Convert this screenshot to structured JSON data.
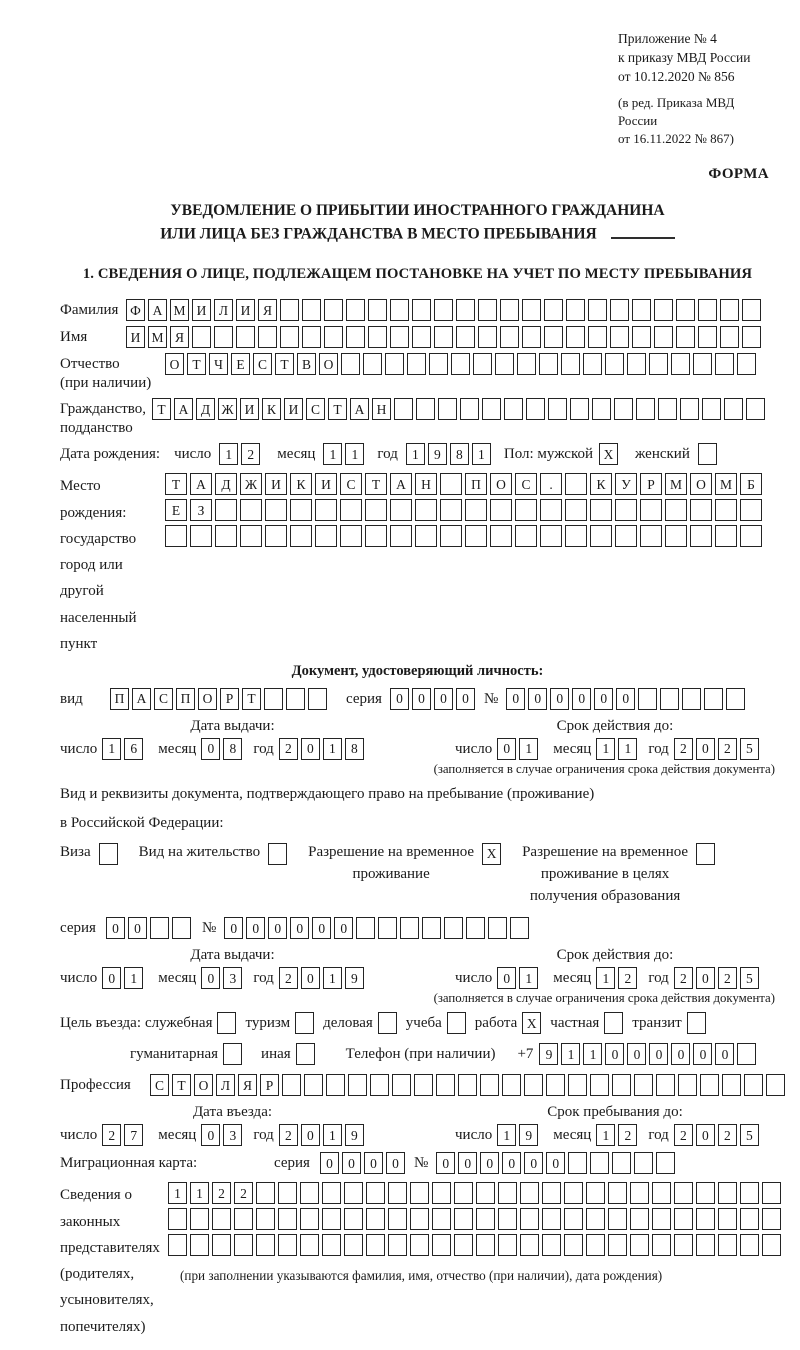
{
  "header": {
    "appendix": [
      "Приложение № 4",
      "к приказу МВД России",
      "от 10.12.2020 № 856"
    ],
    "appendix_note": [
      "(в ред. Приказа МВД России",
      "от 16.11.2022 № 867)"
    ],
    "form_word": "ФОРМА",
    "title1": "УВЕДОМЛЕНИЕ О ПРИБЫТИИ ИНОСТРАННОГО ГРАЖДАНИНА",
    "title2": "ИЛИ ЛИЦА БЕЗ ГРАЖДАНСТВА В МЕСТО ПРЕБЫВАНИЯ",
    "section1": "1. СВЕДЕНИЯ О ЛИЦЕ, ПОДЛЕЖАЩЕМ ПОСТАНОВКЕ НА УЧЕТ ПО МЕСТУ ПРЕБЫВАНИЯ"
  },
  "date_labels": {
    "d": "число",
    "m": "месяц",
    "y": "год"
  },
  "person": {
    "surname": {
      "label": "Фамилия",
      "box": {
        "n": 29,
        "v": "ФАМИЛИЯ"
      }
    },
    "name": {
      "label": "Имя",
      "box": {
        "n": 29,
        "v": "ИМЯ"
      }
    },
    "patronymic": {
      "label1": "Отчество",
      "label2": "(при наличии)",
      "box": {
        "n": 27,
        "v": "ОТЧЕСТВО"
      }
    },
    "citizenship": {
      "label1": "Гражданство,",
      "label2": "подданство",
      "box": {
        "n": 28,
        "v": "ТАДЖИКИСТАН"
      }
    },
    "birth": {
      "label": "Дата рождения:",
      "d": {
        "n": 2,
        "v": "12"
      },
      "m": {
        "n": 2,
        "v": "11"
      },
      "y": {
        "n": 4,
        "v": "1981"
      }
    },
    "sex": {
      "label_male": "Пол: мужской",
      "male": {
        "n": 1,
        "v": "X"
      },
      "label_female": "женский",
      "female": {
        "n": 1,
        "v": ""
      }
    },
    "birth_place": {
      "label1": "Место рождения:",
      "label2": "государство",
      "label3": "город или другой",
      "label4": "населенный пункт",
      "row1": {
        "n": 24,
        "v": "ТАДЖИКИСТАН ПОС. КУРМОМБ"
      },
      "row2": {
        "n": 24,
        "v": "ЕЗ"
      },
      "row3": {
        "n": 24,
        "v": ""
      }
    }
  },
  "identity_doc": {
    "header": "Документ, удостоверяющий личность:",
    "type_label": "вид",
    "type": {
      "n": 10,
      "v": "ПАСПОРТ"
    },
    "series_label": "серия",
    "series": {
      "n": 4,
      "v": "0000"
    },
    "number_label": "№",
    "number": {
      "n": 11,
      "v": "000000"
    },
    "issue": {
      "header": "Дата выдачи:",
      "d": {
        "n": 2,
        "v": "16"
      },
      "m": {
        "n": 2,
        "v": "08"
      },
      "y": {
        "n": 4,
        "v": "2018"
      }
    },
    "valid": {
      "header": "Срок действия до:",
      "d": {
        "n": 2,
        "v": "01"
      },
      "m": {
        "n": 2,
        "v": "11"
      },
      "y": {
        "n": 4,
        "v": "2025"
      }
    },
    "note": "(заполняется в случае ограничения срока действия документа)"
  },
  "residence_doc": {
    "line1": "Вид и реквизиты документа, подтверждающего право на пребывание (проживание)",
    "line2": "в Российской Федерации:",
    "options": [
      {
        "label1": "Виза",
        "box": {
          "n": 1,
          "v": ""
        }
      },
      {
        "label1": "Вид на жительство",
        "box": {
          "n": 1,
          "v": ""
        }
      },
      {
        "label1": "Разрешение на временное",
        "label2": "проживание",
        "box": {
          "n": 1,
          "v": "X"
        }
      },
      {
        "label1": "Разрешение на временное",
        "label2": "проживание в целях",
        "label3": "получения образования",
        "box": {
          "n": 1,
          "v": ""
        }
      }
    ],
    "series_label": "серия",
    "series": {
      "n": 4,
      "v": "00"
    },
    "number_label": "№",
    "number": {
      "n": 14,
      "v": "000000"
    },
    "issue": {
      "header": "Дата выдачи:",
      "d": {
        "n": 2,
        "v": "01"
      },
      "m": {
        "n": 2,
        "v": "03"
      },
      "y": {
        "n": 4,
        "v": "2019"
      }
    },
    "valid": {
      "header": "Срок действия до:",
      "d": {
        "n": 2,
        "v": "01"
      },
      "m": {
        "n": 2,
        "v": "12"
      },
      "y": {
        "n": 4,
        "v": "2025"
      }
    },
    "note": "(заполняется в случае ограничения срока действия документа)"
  },
  "visit": {
    "purpose_label": "Цель въезда:",
    "options": [
      {
        "label": "служебная",
        "box": {
          "n": 1,
          "v": ""
        }
      },
      {
        "label": "туризм",
        "box": {
          "n": 1,
          "v": ""
        }
      },
      {
        "label": "деловая",
        "box": {
          "n": 1,
          "v": ""
        }
      },
      {
        "label": "учеба",
        "box": {
          "n": 1,
          "v": ""
        }
      },
      {
        "label": "работа",
        "box": {
          "n": 1,
          "v": "X"
        }
      },
      {
        "label": "частная",
        "box": {
          "n": 1,
          "v": ""
        }
      },
      {
        "label": "транзит",
        "box": {
          "n": 1,
          "v": ""
        }
      }
    ],
    "options2": [
      {
        "label": "гуманитарная",
        "box": {
          "n": 1,
          "v": ""
        }
      },
      {
        "label": "иная",
        "box": {
          "n": 1,
          "v": ""
        }
      }
    ],
    "phone_label": "Телефон (при наличии)",
    "phone_prefix": "+7",
    "phone": {
      "n": 10,
      "v": "911000000"
    },
    "profession_label": "Профессия",
    "profession": {
      "n": 29,
      "v": "СТОЛЯР"
    },
    "entry": {
      "header": "Дата въезда:",
      "d": {
        "n": 2,
        "v": "27"
      },
      "m": {
        "n": 2,
        "v": "03"
      },
      "y": {
        "n": 4,
        "v": "2019"
      }
    },
    "stay": {
      "header": "Срок пребывания до:",
      "d": {
        "n": 2,
        "v": "19"
      },
      "m": {
        "n": 2,
        "v": "12"
      },
      "y": {
        "n": 4,
        "v": "2025"
      }
    }
  },
  "migration_card": {
    "label": "Миграционная карта:",
    "series_label": "серия",
    "series": {
      "n": 4,
      "v": "0000"
    },
    "number_label": "№",
    "number": {
      "n": 11,
      "v": "000000"
    }
  },
  "representatives": {
    "label_lines": [
      "Сведения о",
      "законных",
      "представителях",
      "(родителях,",
      "усыновителях,",
      "попечителях)"
    ],
    "row1": {
      "n": 28,
      "v": "1122"
    },
    "row2": {
      "n": 28,
      "v": ""
    },
    "row3": {
      "n": 28,
      "v": ""
    },
    "note": "(при заполнении указываются фамилия, имя, отчество (при наличии), дата рождения)"
  }
}
